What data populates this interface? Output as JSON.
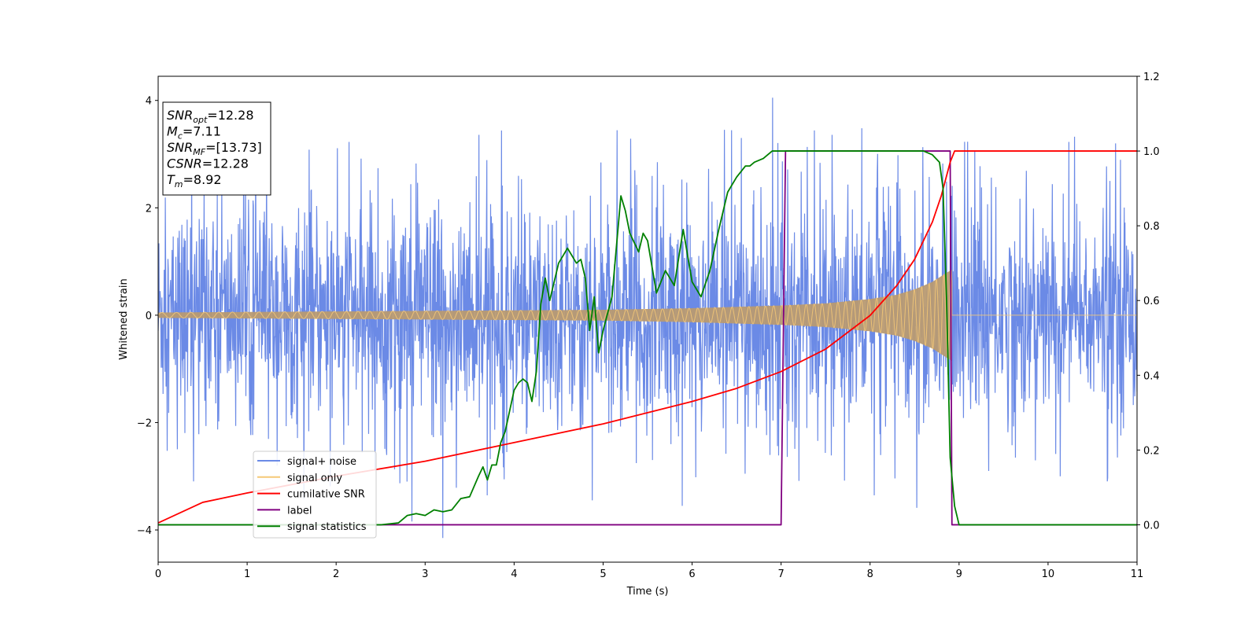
{
  "chart_data": {
    "type": "line",
    "xlabel": "Time (s)",
    "ylabel": "Whitened strain",
    "xlim": [
      0,
      11
    ],
    "ylim": [
      -4.6,
      4.45
    ],
    "y2lim": [
      -0.1,
      1.2
    ],
    "xticks": [
      "0",
      "1",
      "2",
      "3",
      "4",
      "5",
      "6",
      "7",
      "8",
      "9",
      "10",
      "11"
    ],
    "yticks": [
      "−4",
      "−2",
      "0",
      "2",
      "4"
    ],
    "y2ticks": [
      "0.0",
      "0.2",
      "0.4",
      "0.6",
      "0.8",
      "1.0",
      "1.2"
    ],
    "grid": false,
    "legend_position": "lower-left",
    "colors": {
      "signal_noise": "#6b8ae6",
      "signal_only": "#f5c877",
      "signal_only_overlap": "#b89a72",
      "cumulative_snr": "#ff0000",
      "label": "#800080",
      "signal_statistics": "#008000"
    },
    "series": [
      {
        "key": "noise",
        "name": "signal+ noise",
        "axis": "left",
        "sigma": 1.0,
        "peak_max": 4.05,
        "peak_min": -4.15,
        "x_range": [
          0,
          11
        ]
      },
      {
        "key": "signal",
        "name": "signal only",
        "axis": "left",
        "envelope": {
          "x": [
            0,
            2,
            4,
            5,
            6,
            7,
            7.5,
            8,
            8.3,
            8.5,
            8.7,
            8.85,
            8.92
          ],
          "amp": [
            0.05,
            0.07,
            0.09,
            0.1,
            0.13,
            0.18,
            0.22,
            0.3,
            0.38,
            0.48,
            0.62,
            0.78,
            0.85
          ]
        },
        "end": 8.92
      },
      {
        "key": "csnr",
        "name": "cumilative SNR",
        "axis": "right",
        "x": [
          0,
          0.5,
          1,
          2,
          3,
          4,
          5,
          6,
          6.5,
          7,
          7.5,
          8,
          8.3,
          8.5,
          8.7,
          8.8,
          8.9,
          8.95,
          11
        ],
        "y": [
          0.005,
          0.06,
          0.085,
          0.13,
          0.17,
          0.22,
          0.27,
          0.33,
          0.365,
          0.41,
          0.47,
          0.56,
          0.64,
          0.71,
          0.81,
          0.88,
          0.97,
          1.0,
          1.0
        ]
      },
      {
        "key": "label",
        "name": "label",
        "axis": "right",
        "x": [
          0,
          7.0,
          7.05,
          8.9,
          8.92,
          11
        ],
        "y": [
          0.0,
          0.0,
          1.0,
          1.0,
          0.0,
          0.0
        ]
      },
      {
        "key": "stats",
        "name": "signal statistics",
        "axis": "right",
        "x": [
          0,
          0.5,
          1,
          1.5,
          2,
          2.5,
          2.7,
          2.8,
          2.9,
          3.0,
          3.1,
          3.2,
          3.3,
          3.4,
          3.5,
          3.6,
          3.65,
          3.7,
          3.75,
          3.8,
          3.85,
          3.9,
          4.0,
          4.05,
          4.1,
          4.15,
          4.2,
          4.25,
          4.3,
          4.35,
          4.4,
          4.5,
          4.6,
          4.7,
          4.75,
          4.8,
          4.85,
          4.9,
          4.95,
          5.0,
          5.1,
          5.2,
          5.25,
          5.3,
          5.4,
          5.45,
          5.5,
          5.6,
          5.7,
          5.8,
          5.9,
          6.0,
          6.1,
          6.2,
          6.3,
          6.4,
          6.5,
          6.6,
          6.65,
          6.7,
          6.8,
          6.9,
          7.0,
          7.1,
          7.3,
          7.5,
          7.7,
          7.9,
          8.0,
          8.1,
          8.2,
          8.4,
          8.6,
          8.7,
          8.78,
          8.82,
          8.86,
          8.9,
          8.95,
          9.0,
          9.1,
          9.3,
          10,
          11
        ],
        "y": [
          0.0,
          0.0,
          0.0,
          0.0,
          0.0,
          0.0,
          0.005,
          0.025,
          0.03,
          0.025,
          0.04,
          0.035,
          0.04,
          0.07,
          0.075,
          0.13,
          0.155,
          0.12,
          0.16,
          0.16,
          0.22,
          0.25,
          0.36,
          0.38,
          0.39,
          0.38,
          0.33,
          0.41,
          0.59,
          0.66,
          0.6,
          0.7,
          0.74,
          0.7,
          0.71,
          0.66,
          0.52,
          0.61,
          0.46,
          0.52,
          0.61,
          0.88,
          0.84,
          0.78,
          0.73,
          0.78,
          0.76,
          0.62,
          0.68,
          0.64,
          0.79,
          0.65,
          0.61,
          0.68,
          0.79,
          0.89,
          0.93,
          0.96,
          0.96,
          0.97,
          0.98,
          1.0,
          1.0,
          1.0,
          1.0,
          1.0,
          1.0,
          1.0,
          1.0,
          1.0,
          1.0,
          1.0,
          1.0,
          0.99,
          0.97,
          0.9,
          0.6,
          0.18,
          0.05,
          0.0,
          0.0,
          0.0,
          0.0,
          0.0
        ]
      }
    ],
    "annotation": {
      "lines": [
        {
          "base": "SNR",
          "sub": "opt",
          "value": "=12.28"
        },
        {
          "base": "M",
          "sub": "c",
          "value": "=7.11"
        },
        {
          "base": "SNR",
          "sub": "MF",
          "value": "=[13.73]"
        },
        {
          "base": "CSNR",
          "sub": "",
          "value": "=12.28"
        },
        {
          "base": "T",
          "sub": "m",
          "value": "=8.92"
        }
      ]
    }
  }
}
